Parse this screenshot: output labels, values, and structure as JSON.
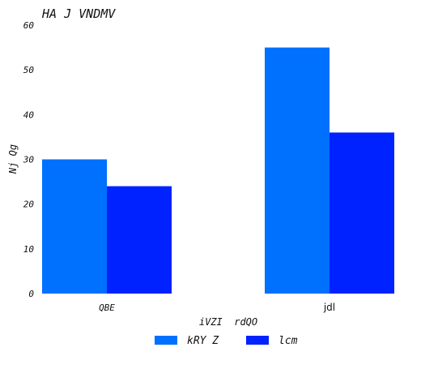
{
  "chart_data": {
    "type": "bar",
    "title": "HA J VNDMV",
    "xlabel": "iVZI  rdQO",
    "ylabel": "Nj Qg",
    "categories": [
      "QBE",
      "jdl"
    ],
    "series": [
      {
        "name": "kRY Z",
        "values": [
          30,
          55
        ],
        "color": "#0070ff"
      },
      {
        "name": "lcm",
        "values": [
          24,
          36
        ],
        "color": "#0022ff"
      }
    ],
    "ylim": [
      0,
      60
    ],
    "yticks": [
      "0",
      "10",
      "20",
      "30",
      "40",
      "50",
      "60"
    ],
    "grid": false,
    "legend": "bottom-center"
  }
}
